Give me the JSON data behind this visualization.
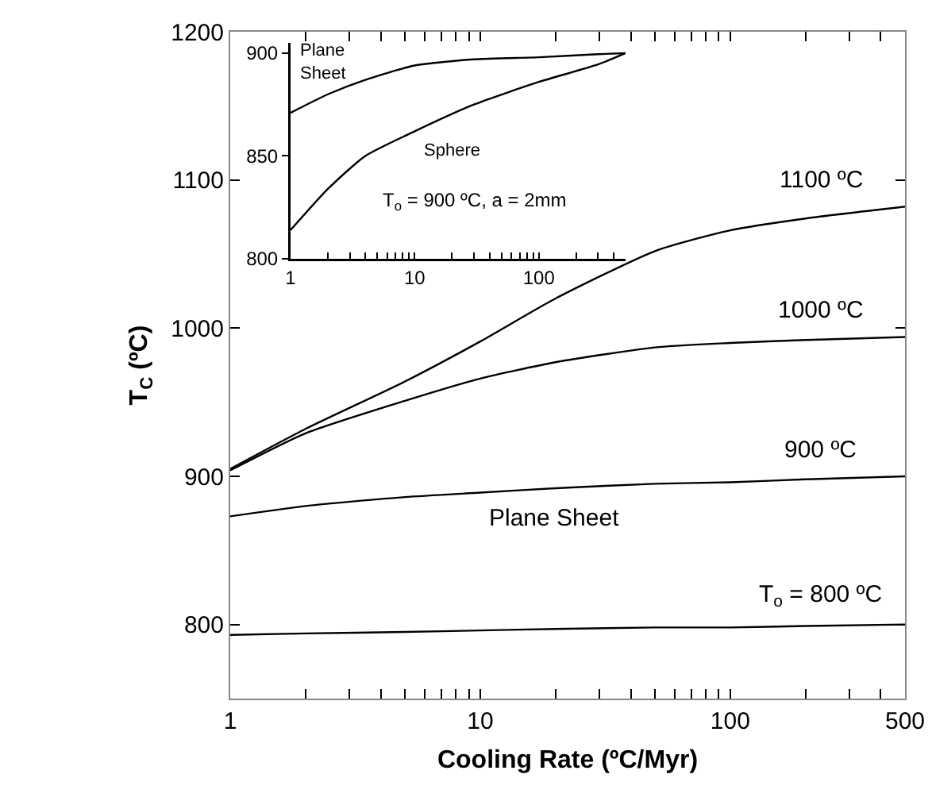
{
  "chart_data": [
    {
      "type": "line",
      "xlabel": "Cooling Rate (ºC/Myr)",
      "ylabel": "T$_{C}$ (ºC)",
      "log": "x",
      "xlim": [
        1,
        500
      ],
      "ylim": [
        750,
        1200
      ],
      "xticks": [
        1,
        {
          "value": 2,
          "label": null
        },
        {
          "value": 3,
          "label": null
        },
        {
          "value": 4,
          "label": null
        },
        {
          "value": 5,
          "label": null
        },
        {
          "value": 6,
          "label": null
        },
        {
          "value": 7,
          "label": null
        },
        {
          "value": 8,
          "label": null
        },
        {
          "value": 9,
          "label": null
        },
        10,
        {
          "value": 20,
          "label": null
        },
        {
          "value": 30,
          "label": null
        },
        {
          "value": 40,
          "label": null
        },
        {
          "value": 50,
          "label": null
        },
        {
          "value": 60,
          "label": null
        },
        {
          "value": 70,
          "label": null
        },
        {
          "value": 80,
          "label": null
        },
        {
          "value": 90,
          "label": null
        },
        100,
        {
          "value": 200,
          "label": null
        },
        {
          "value": 300,
          "label": null
        },
        {
          "value": 400,
          "label": null
        },
        500
      ],
      "yticks": [
        800,
        900,
        1000,
        1100,
        1200
      ],
      "x": [
        1,
        2,
        5,
        10,
        20,
        50,
        100,
        200,
        500
      ],
      "series": [
        {
          "name": "1100 ºC",
          "color": "#000000",
          "values": [
            905,
            932,
            964,
            991,
            1020,
            1052,
            1066,
            1074,
            1082
          ]
        },
        {
          "name": "1000 ºC",
          "color": "#000000",
          "values": [
            904,
            929,
            951,
            966,
            977,
            987,
            990,
            992,
            994
          ]
        },
        {
          "name": "900 ºC",
          "color": "#000000",
          "values": [
            873,
            880,
            886,
            889,
            892,
            895,
            896,
            898,
            900
          ]
        },
        {
          "name": "T$_{o}$ = 800 ºC",
          "color": "#000000",
          "values": [
            793,
            794,
            795,
            796,
            797,
            798,
            798,
            799,
            800
          ]
        }
      ],
      "annotations": [
        "Plane Sheet"
      ]
    },
    {
      "type": "line",
      "log": "x",
      "xlim": [
        1,
        500
      ],
      "ylim": [
        800,
        905
      ],
      "xticks": [
        1,
        {
          "value": 2,
          "label": null
        },
        {
          "value": 3,
          "label": null
        },
        {
          "value": 4,
          "label": null
        },
        {
          "value": 5,
          "label": null
        },
        {
          "value": 6,
          "label": null
        },
        {
          "value": 7,
          "label": null
        },
        {
          "value": 8,
          "label": null
        },
        {
          "value": 9,
          "label": null
        },
        10,
        {
          "value": 20,
          "label": null
        },
        {
          "value": 30,
          "label": null
        },
        {
          "value": 40,
          "label": null
        },
        {
          "value": 50,
          "label": null
        },
        {
          "value": 60,
          "label": null
        },
        {
          "value": 70,
          "label": null
        },
        {
          "value": 80,
          "label": null
        },
        {
          "value": 90,
          "label": null
        },
        100,
        {
          "value": 200,
          "label": null
        },
        {
          "value": 300,
          "label": null
        },
        {
          "value": 400,
          "label": null
        }
      ],
      "yticks": [
        800,
        850,
        900
      ],
      "x": [
        1,
        2,
        4,
        10,
        30,
        100,
        300,
        500
      ],
      "series": [
        {
          "name": "Plane Sheet",
          "color": "#000000",
          "values": [
            871,
            880,
            887,
            894,
            897,
            898,
            899.5,
            900
          ]
        },
        {
          "name": "Sphere",
          "color": "#000000",
          "values": [
            814,
            834,
            850,
            862,
            875,
            886,
            894.5,
            900
          ]
        }
      ],
      "annotations": [
        "T$_{o}$ = 900 ºC, a = 2mm"
      ]
    }
  ]
}
